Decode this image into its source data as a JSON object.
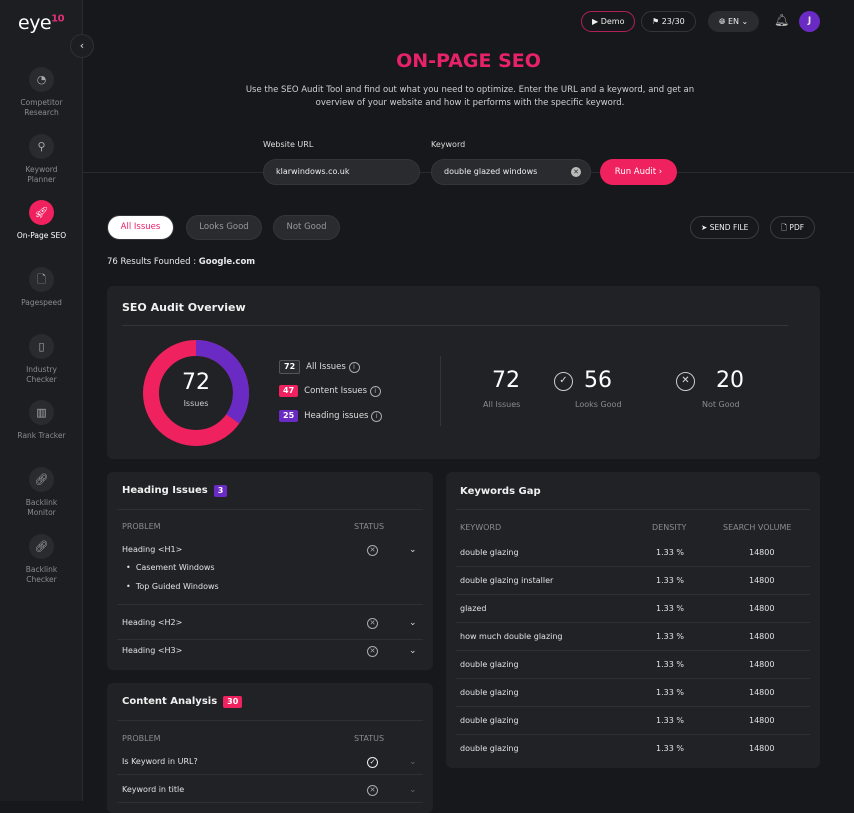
{
  "app": {
    "logo": "eye",
    "logo_sup": "10"
  },
  "sidebar": {
    "items": [
      {
        "label": "Competitor Research",
        "icon": "pie-chart-icon"
      },
      {
        "label": "Keyword Planner",
        "icon": "search-w-icon"
      },
      {
        "label": "On-Page SEO",
        "icon": "rocket-icon",
        "active": true
      },
      {
        "label": "Pagespeed",
        "icon": "file-icon"
      },
      {
        "label": "Industry Checker",
        "icon": "tablet-icon"
      },
      {
        "label": "Rank Tracker",
        "icon": "bar-chart-icon"
      },
      {
        "label": "Backlink Monitor",
        "icon": "link-icon"
      },
      {
        "label": "Backlink Checker",
        "icon": "link-icon"
      }
    ]
  },
  "topbar": {
    "demo": "Demo",
    "credits": "23/30",
    "language": "EN",
    "avatar": "J"
  },
  "header": {
    "title": "ON-PAGE SEO",
    "subtitle": "Use the SEO Audit Tool and find out what you need to optimize. Enter the URL and a keyword, and get an overview of your website and how it performs with the specific keyword."
  },
  "form": {
    "url_label": "Website URL",
    "url_value": "klarwindows.co.uk",
    "keyword_label": "Keyword",
    "keyword_value": "double glazed windows",
    "run": "Run Audit"
  },
  "tabs": [
    "All Issues",
    "Looks Good",
    "Not Good"
  ],
  "actions": {
    "send": "SEND FILE",
    "pdf": "PDF"
  },
  "results": {
    "prefix": "76 Results Founded : ",
    "engine": "Google.com"
  },
  "overview": {
    "title": "SEO Audit Overview",
    "total": "72",
    "total_label": "Issues",
    "legend": [
      {
        "count": "72",
        "label": "All Issues",
        "color": "#2a2b2f"
      },
      {
        "count": "47",
        "label": "Content Issues",
        "color": "#f0215f"
      },
      {
        "count": "25",
        "label": "Heading issues",
        "color": "#6a2bc4"
      }
    ],
    "stats": [
      {
        "value": "72",
        "label": "All Issues"
      },
      {
        "value": "56",
        "label": "Looks Good"
      },
      {
        "value": "20",
        "label": "Not Good"
      }
    ],
    "colors": {
      "content": "#f0215f",
      "heading": "#6a2bc4"
    }
  },
  "heading_issues": {
    "title": "Heading Issues",
    "count": "3",
    "col_problem": "PROBLEM",
    "col_status": "STATUS",
    "rows": [
      {
        "label": "Heading <H1>",
        "subs": [
          "Casement Windows",
          "Top Guided Windows"
        ]
      },
      {
        "label": "Heading <H2>"
      },
      {
        "label": "Heading <H3>"
      }
    ]
  },
  "content_analysis": {
    "title": "Content Analysis",
    "count": "30",
    "col_problem": "PROBLEM",
    "col_status": "STATUS",
    "rows": [
      {
        "label": "Is Keyword in URL?",
        "status": "good"
      },
      {
        "label": "Keyword in title",
        "status": "bad"
      }
    ]
  },
  "keywords_gap": {
    "title": "Keywords Gap",
    "cols": [
      "KEYWORD",
      "DENSITY",
      "SEARCH VOLUME"
    ],
    "rows": [
      [
        "double glazing",
        "1.33 %",
        "14800"
      ],
      [
        "double glazing installer",
        "1.33 %",
        "14800"
      ],
      [
        "glazed",
        "1.33 %",
        "14800"
      ],
      [
        "how much double glazing",
        "1.33 %",
        "14800"
      ],
      [
        "double glazing",
        "1.33 %",
        "14800"
      ],
      [
        "double glazing",
        "1.33 %",
        "14800"
      ],
      [
        "double glazing",
        "1.33 %",
        "14800"
      ],
      [
        "double glazing",
        "1.33 %",
        "14800"
      ]
    ]
  }
}
